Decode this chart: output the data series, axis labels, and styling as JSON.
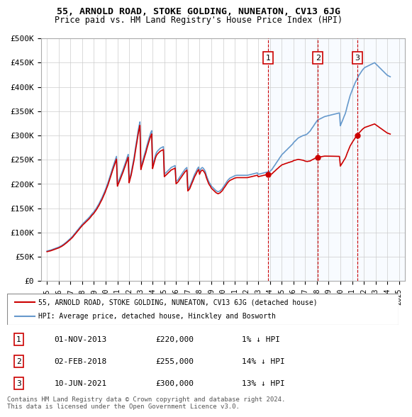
{
  "title": "55, ARNOLD ROAD, STOKE GOLDING, NUNEATON, CV13 6JG",
  "subtitle": "Price paid vs. HM Land Registry's House Price Index (HPI)",
  "ylabel_ticks": [
    "£0",
    "£50K",
    "£100K",
    "£150K",
    "£200K",
    "£250K",
    "£300K",
    "£350K",
    "£400K",
    "£450K",
    "£500K"
  ],
  "ylim": [
    0,
    500000
  ],
  "ytick_vals": [
    0,
    50000,
    100000,
    150000,
    200000,
    250000,
    300000,
    350000,
    400000,
    450000,
    500000
  ],
  "xlim_start": 1994.5,
  "xlim_end": 2025.5,
  "sale_dates": [
    2013.83,
    2018.08,
    2021.44
  ],
  "sale_prices": [
    220000,
    255000,
    300000
  ],
  "sale_labels": [
    "1",
    "2",
    "3"
  ],
  "legend_red": "55, ARNOLD ROAD, STOKE GOLDING, NUNEATON, CV13 6JG (detached house)",
  "legend_blue": "HPI: Average price, detached house, Hinckley and Bosworth",
  "table_rows": [
    [
      "1",
      "01-NOV-2013",
      "£220,000",
      "1% ↓ HPI"
    ],
    [
      "2",
      "02-FEB-2018",
      "£255,000",
      "14% ↓ HPI"
    ],
    [
      "3",
      "10-JUN-2021",
      "£300,000",
      "13% ↓ HPI"
    ]
  ],
  "footer": "Contains HM Land Registry data © Crown copyright and database right 2024.\nThis data is licensed under the Open Government Licence v3.0.",
  "red_color": "#cc0000",
  "blue_color": "#6699cc",
  "vline_color": "#cc0000",
  "bg_shade_color": "#ddeeff",
  "grid_color": "#cccccc",
  "hpi_x": [
    1995,
    1995.08,
    1995.17,
    1995.25,
    1995.33,
    1995.42,
    1995.5,
    1995.58,
    1995.67,
    1995.75,
    1995.83,
    1995.92,
    1996,
    1996.08,
    1996.17,
    1996.25,
    1996.33,
    1996.42,
    1996.5,
    1996.58,
    1996.67,
    1996.75,
    1996.83,
    1996.92,
    1997,
    1997.08,
    1997.17,
    1997.25,
    1997.33,
    1997.42,
    1997.5,
    1997.58,
    1997.67,
    1997.75,
    1997.83,
    1997.92,
    1998,
    1998.08,
    1998.17,
    1998.25,
    1998.33,
    1998.42,
    1998.5,
    1998.58,
    1998.67,
    1998.75,
    1998.83,
    1998.92,
    1999,
    1999.08,
    1999.17,
    1999.25,
    1999.33,
    1999.42,
    1999.5,
    1999.58,
    1999.67,
    1999.75,
    1999.83,
    1999.92,
    2000,
    2000.08,
    2000.17,
    2000.25,
    2000.33,
    2000.42,
    2000.5,
    2000.58,
    2000.67,
    2000.75,
    2000.83,
    2000.92,
    2001,
    2001.08,
    2001.17,
    2001.25,
    2001.33,
    2001.42,
    2001.5,
    2001.58,
    2001.67,
    2001.75,
    2001.83,
    2001.92,
    2002,
    2002.08,
    2002.17,
    2002.25,
    2002.33,
    2002.42,
    2002.5,
    2002.58,
    2002.67,
    2002.75,
    2002.83,
    2002.92,
    2003,
    2003.08,
    2003.17,
    2003.25,
    2003.33,
    2003.42,
    2003.5,
    2003.58,
    2003.67,
    2003.75,
    2003.83,
    2003.92,
    2004,
    2004.08,
    2004.17,
    2004.25,
    2004.33,
    2004.42,
    2004.5,
    2004.58,
    2004.67,
    2004.75,
    2004.83,
    2004.92,
    2005,
    2005.08,
    2005.17,
    2005.25,
    2005.33,
    2005.42,
    2005.5,
    2005.58,
    2005.67,
    2005.75,
    2005.83,
    2005.92,
    2006,
    2006.08,
    2006.17,
    2006.25,
    2006.33,
    2006.42,
    2006.5,
    2006.58,
    2006.67,
    2006.75,
    2006.83,
    2006.92,
    2007,
    2007.08,
    2007.17,
    2007.25,
    2007.33,
    2007.42,
    2007.5,
    2007.58,
    2007.67,
    2007.75,
    2007.83,
    2007.92,
    2008,
    2008.08,
    2008.17,
    2008.25,
    2008.33,
    2008.42,
    2008.5,
    2008.58,
    2008.67,
    2008.75,
    2008.83,
    2008.92,
    2009,
    2009.08,
    2009.17,
    2009.25,
    2009.33,
    2009.42,
    2009.5,
    2009.58,
    2009.67,
    2009.75,
    2009.83,
    2009.92,
    2010,
    2010.08,
    2010.17,
    2010.25,
    2010.33,
    2010.42,
    2010.5,
    2010.58,
    2010.67,
    2010.75,
    2010.83,
    2010.92,
    2011,
    2011.08,
    2011.17,
    2011.25,
    2011.33,
    2011.42,
    2011.5,
    2011.58,
    2011.67,
    2011.75,
    2011.83,
    2011.92,
    2012,
    2012.08,
    2012.17,
    2012.25,
    2012.33,
    2012.42,
    2012.5,
    2012.58,
    2012.67,
    2012.75,
    2012.83,
    2012.92,
    2013,
    2013.08,
    2013.17,
    2013.25,
    2013.33,
    2013.42,
    2013.5,
    2013.58,
    2013.67,
    2013.75,
    2013.83,
    2013.92,
    2014,
    2014.08,
    2014.17,
    2014.25,
    2014.33,
    2014.42,
    2014.5,
    2014.58,
    2014.67,
    2014.75,
    2014.83,
    2014.92,
    2015,
    2015.08,
    2015.17,
    2015.25,
    2015.33,
    2015.42,
    2015.5,
    2015.58,
    2015.67,
    2015.75,
    2015.83,
    2015.92,
    2016,
    2016.08,
    2016.17,
    2016.25,
    2016.33,
    2016.42,
    2016.5,
    2016.58,
    2016.67,
    2016.75,
    2016.83,
    2016.92,
    2017,
    2017.08,
    2017.17,
    2017.25,
    2017.33,
    2017.42,
    2017.5,
    2017.58,
    2017.67,
    2017.75,
    2017.83,
    2017.92,
    2018,
    2018.08,
    2018.17,
    2018.25,
    2018.33,
    2018.42,
    2018.5,
    2018.58,
    2018.67,
    2018.75,
    2018.83,
    2018.92,
    2019,
    2019.08,
    2019.17,
    2019.25,
    2019.33,
    2019.42,
    2019.5,
    2019.58,
    2019.67,
    2019.75,
    2019.83,
    2019.92,
    2020,
    2020.08,
    2020.17,
    2020.25,
    2020.33,
    2020.42,
    2020.5,
    2020.58,
    2020.67,
    2020.75,
    2020.83,
    2020.92,
    2021,
    2021.08,
    2021.17,
    2021.25,
    2021.33,
    2021.42,
    2021.5,
    2021.58,
    2021.67,
    2021.75,
    2021.83,
    2021.92,
    2022,
    2022.08,
    2022.17,
    2022.25,
    2022.33,
    2022.42,
    2022.5,
    2022.58,
    2022.67,
    2022.75,
    2022.83,
    2022.92,
    2023,
    2023.08,
    2023.17,
    2023.25,
    2023.33,
    2023.42,
    2023.5,
    2023.58,
    2023.67,
    2023.75,
    2023.83,
    2023.92,
    2024,
    2024.08,
    2024.17,
    2024.25
  ],
  "hpi_y": [
    62000,
    62500,
    63000,
    63500,
    64000,
    64800,
    65500,
    66200,
    67000,
    67800,
    68500,
    69300,
    70000,
    71000,
    72000,
    73200,
    74500,
    76000,
    77500,
    79000,
    80800,
    82500,
    84200,
    86000,
    88000,
    90000,
    92000,
    94500,
    97000,
    99500,
    102000,
    104500,
    107000,
    109500,
    112000,
    114500,
    117000,
    119000,
    121000,
    123000,
    125000,
    127000,
    129000,
    131000,
    133500,
    136000,
    138500,
    141000,
    143000,
    146000,
    149000,
    152000,
    155500,
    159000,
    163000,
    167000,
    171000,
    175500,
    180000,
    185000,
    190000,
    195500,
    201000,
    207000,
    213000,
    219500,
    226000,
    232500,
    239000,
    245000,
    251000,
    257000,
    200000,
    205000,
    210000,
    215000,
    220000,
    225500,
    231000,
    237000,
    243000,
    249000,
    255000,
    261000,
    207000,
    215000,
    223000,
    233000,
    243000,
    255000,
    268000,
    281000,
    294000,
    307000,
    318000,
    328000,
    235000,
    242000,
    249000,
    256000,
    263000,
    270000,
    278000,
    285000,
    292500,
    299000,
    305000,
    310000,
    237000,
    245000,
    253000,
    260000,
    265000,
    268000,
    270000,
    272000,
    274000,
    275000,
    276000,
    277000,
    220000,
    222000,
    224000,
    226000,
    228000,
    230000,
    232000,
    234000,
    235000,
    236000,
    237000,
    238000,
    205000,
    207000,
    209000,
    212000,
    215000,
    218000,
    221000,
    224000,
    227000,
    230000,
    232000,
    234000,
    190000,
    192000,
    195000,
    200000,
    205000,
    210000,
    215000,
    220000,
    224000,
    228000,
    232000,
    235000,
    225000,
    230000,
    233000,
    234000,
    232000,
    229000,
    225000,
    218000,
    212000,
    207000,
    203000,
    200000,
    196000,
    194000,
    192000,
    190000,
    188000,
    186000,
    185000,
    184000,
    185000,
    186000,
    188000,
    190000,
    193000,
    196000,
    199000,
    202000,
    205000,
    208000,
    210000,
    212000,
    213000,
    214000,
    215000,
    216000,
    217000,
    217500,
    218000,
    218000,
    218000,
    218000,
    218000,
    218000,
    218000,
    218000,
    218000,
    218000,
    218000,
    218000,
    218500,
    219000,
    219500,
    220000,
    220500,
    221000,
    221500,
    222000,
    222500,
    223000,
    220000,
    220500,
    221000,
    221500,
    222000,
    222500,
    223000,
    223500,
    224000,
    224500,
    225000,
    225500,
    226000,
    228000,
    230000,
    233000,
    236000,
    239000,
    242000,
    245000,
    248000,
    251000,
    254000,
    257000,
    260000,
    262000,
    264000,
    266000,
    268000,
    270000,
    272000,
    274000,
    276000,
    278000,
    280000,
    282000,
    285000,
    287000,
    289000,
    291000,
    293000,
    295000,
    296000,
    297000,
    298000,
    299000,
    300000,
    300500,
    301000,
    302000,
    303000,
    305000,
    307000,
    309000,
    312000,
    315000,
    318000,
    321000,
    324000,
    327000,
    330000,
    332000,
    333000,
    334000,
    335000,
    336000,
    337000,
    338000,
    339000,
    339500,
    340000,
    340500,
    341000,
    341500,
    342000,
    342500,
    343000,
    343500,
    344000,
    344500,
    345000,
    345500,
    346000,
    346500,
    320000,
    325000,
    330000,
    335000,
    340000,
    345000,
    352000,
    360000,
    368000,
    375000,
    382000,
    388000,
    393000,
    398000,
    403000,
    408000,
    412000,
    416000,
    420000,
    424000,
    427000,
    430000,
    433000,
    436000,
    438000,
    440000,
    441000,
    442000,
    443000,
    444000,
    445000,
    446000,
    447000,
    448000,
    449000,
    450000,
    448000,
    446000,
    444000,
    442000,
    440000,
    438000,
    436000,
    434000,
    432000,
    430000,
    428000,
    426000,
    424000,
    423000,
    422000,
    421000
  ]
}
